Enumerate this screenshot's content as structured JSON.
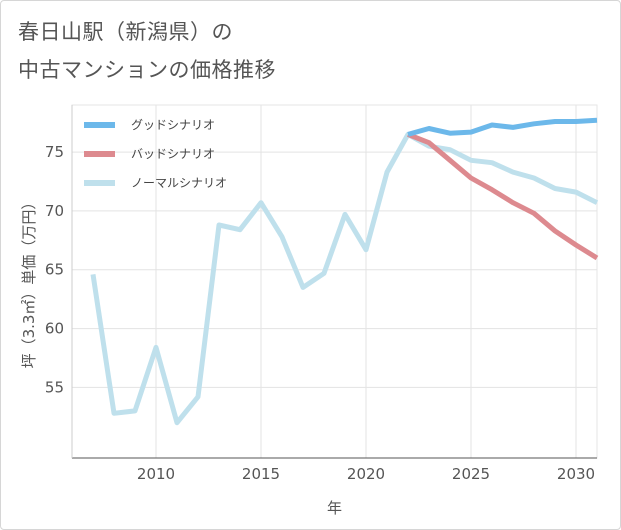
{
  "title_line1": "春日山駅（新潟県）の",
  "title_line2": "中古マンションの価格推移",
  "chart_data": {
    "type": "line",
    "xlabel": "年",
    "ylabel": "坪（3.3㎡）単価（万円）",
    "xlim": [
      2006,
      2031
    ],
    "ylim": [
      49,
      79
    ],
    "xticks": [
      2010,
      2015,
      2020,
      2025,
      2030
    ],
    "yticks": [
      55,
      60,
      65,
      70,
      75
    ],
    "grid": true,
    "legend_position": "top-left",
    "series": [
      {
        "name": "グッドシナリオ",
        "color": "#6cb8ea",
        "x": [
          2022,
          2023,
          2024,
          2025,
          2026,
          2027,
          2028,
          2029,
          2030,
          2031
        ],
        "y": [
          76.5,
          77.0,
          76.6,
          76.7,
          77.3,
          77.1,
          77.4,
          77.6,
          77.6,
          77.7
        ]
      },
      {
        "name": "バッドシナリオ",
        "color": "#dd8a8f",
        "x": [
          2022,
          2023,
          2024,
          2025,
          2026,
          2027,
          2028,
          2029,
          2030,
          2031
        ],
        "y": [
          76.5,
          75.8,
          74.3,
          72.8,
          71.8,
          70.7,
          69.8,
          68.3,
          67.1,
          66.0
        ]
      },
      {
        "name": "ノーマルシナリオ",
        "color": "#bfe0ec",
        "x": [
          2007,
          2008,
          2009,
          2010,
          2011,
          2012,
          2013,
          2014,
          2015,
          2016,
          2017,
          2018,
          2019,
          2020,
          2021,
          2022,
          2023,
          2024,
          2025,
          2026,
          2027,
          2028,
          2029,
          2030,
          2031
        ],
        "y": [
          64.6,
          52.8,
          53.0,
          58.4,
          52.0,
          54.2,
          68.8,
          68.4,
          70.7,
          67.8,
          63.5,
          64.7,
          69.7,
          66.7,
          73.3,
          76.5,
          75.5,
          75.2,
          74.3,
          74.1,
          73.3,
          72.8,
          71.9,
          71.6,
          70.7
        ]
      }
    ]
  }
}
